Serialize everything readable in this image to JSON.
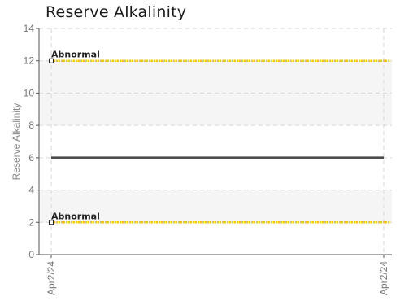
{
  "chart_data": {
    "type": "line",
    "title": "Reserve Alkalinity",
    "ylabel": "Reserve Alkalinity",
    "xlabel": "",
    "ylim": [
      0,
      14
    ],
    "yticks": [
      0,
      2,
      4,
      6,
      8,
      10,
      12,
      14
    ],
    "x_categories": [
      "Apr2/24",
      "Apr2/24"
    ],
    "grid": true,
    "bands": [
      {
        "from": 2,
        "to": 4,
        "color": "#f5f5f5"
      },
      {
        "from": 8,
        "to": 12,
        "color": "#f5f5f5"
      }
    ],
    "series": [
      {
        "values": [
          6,
          6
        ],
        "color": "#4d4d4d"
      }
    ],
    "thresholds": [
      {
        "label": "Abnormal",
        "value": 12,
        "color": "#f5c400"
      },
      {
        "label": "Abnormal",
        "value": 2,
        "color": "#f5c400"
      }
    ]
  }
}
